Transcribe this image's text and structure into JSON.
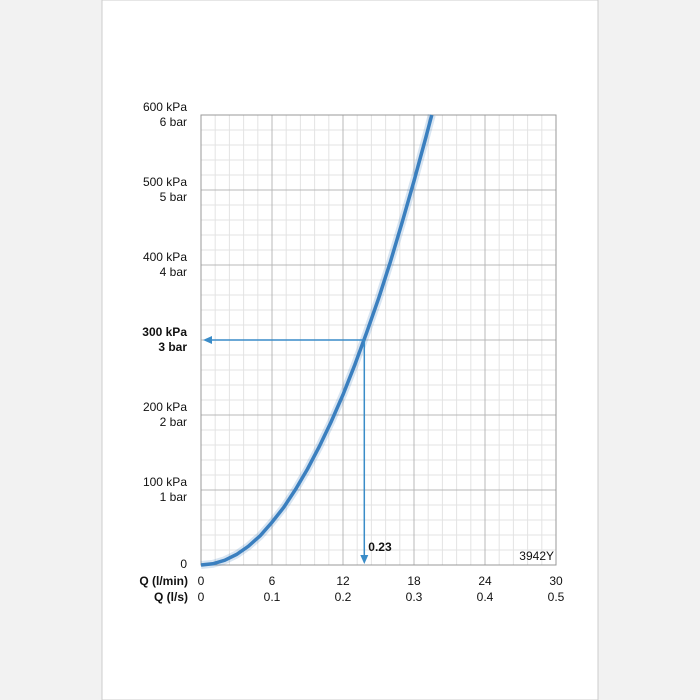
{
  "chart_data": {
    "type": "line",
    "x_label": "Q (l/min)",
    "x2_label": "Q (l/s)",
    "x": [
      0,
      1,
      2,
      3,
      4,
      5,
      6,
      7,
      8,
      9,
      10,
      11,
      12,
      13,
      14,
      15,
      16,
      17,
      18,
      19,
      19.5
    ],
    "series": [
      {
        "color": "#3a7fbf",
        "values": [
          0,
          1.6,
          6.3,
          14,
          25,
          39,
          57,
          77,
          101,
          128,
          158,
          191,
          227,
          267,
          310,
          355,
          404,
          457,
          512,
          570,
          600
        ]
      }
    ],
    "xlim": [
      0,
      30
    ],
    "xticks": [
      0,
      6,
      12,
      18,
      24,
      30
    ],
    "x2lim": [
      0,
      0.5
    ],
    "x2ticks": [
      0,
      0.1,
      0.2,
      0.3,
      0.4,
      0.5
    ],
    "ylim": [
      0,
      600
    ],
    "yticks": [
      0,
      {
        "value": 100,
        "label": "100 kPa"
      },
      {
        "value": 200,
        "label": "200 kPa"
      },
      {
        "value": 300,
        "label": "300 kPa"
      },
      {
        "value": 400,
        "label": "400 kPa"
      },
      {
        "value": 500,
        "label": "500 kPa"
      },
      {
        "value": 600,
        "label": "600 kPa"
      }
    ],
    "y2lim": [
      0,
      6
    ],
    "y2ticks": [
      {
        "value": 1,
        "label": "1 bar"
      },
      {
        "value": 2,
        "label": "2 bar"
      },
      {
        "value": 3,
        "label": "3 bar"
      },
      {
        "value": 4,
        "label": "4 bar"
      },
      {
        "value": 5,
        "label": "5 bar"
      },
      {
        "value": 6,
        "label": "6 bar"
      }
    ],
    "highlight_y": 300,
    "grid": true,
    "minor_xstep": 1.2,
    "minor_ystep": 20,
    "annotation": {
      "x": 13.8,
      "y": 300,
      "label": "0.23",
      "color": "#3a8cc8"
    },
    "code": "3942Y"
  }
}
